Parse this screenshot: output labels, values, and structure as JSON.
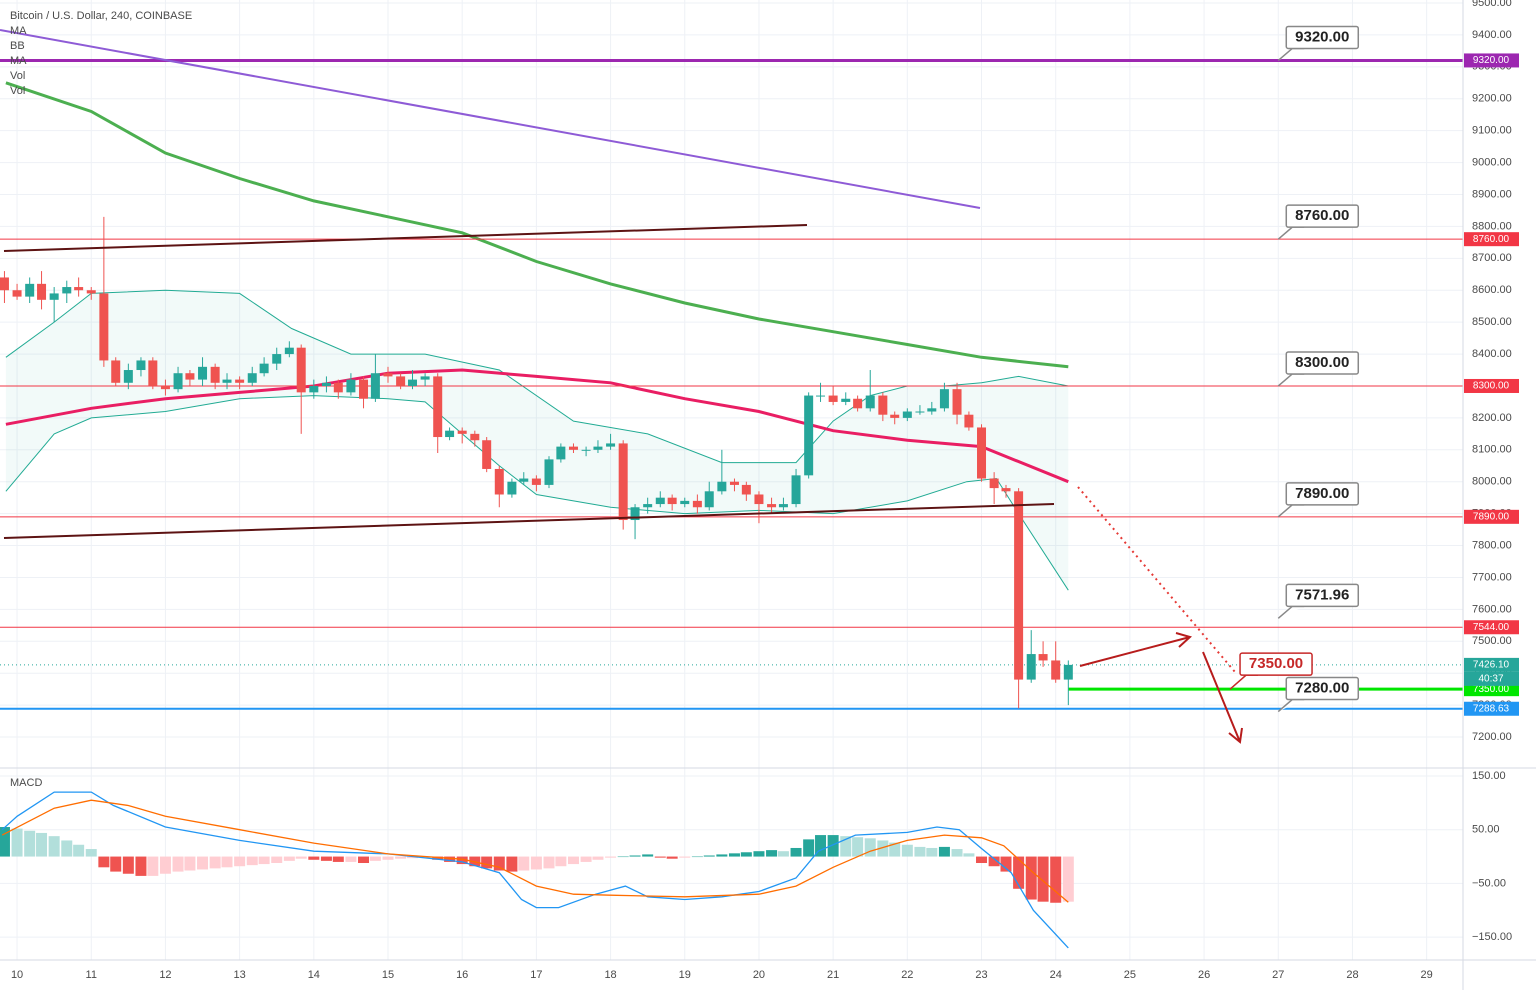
{
  "legend": [
    "Bitcoin / U.S. Dollar, 240, COINBASE",
    "MA",
    "BB",
    "MA",
    "Vol",
    "Vol"
  ],
  "timer": "40:37",
  "chart_data": [
    {
      "type": "candlestick",
      "xlim": [
        9.77,
        29.49
      ],
      "ylim": [
        7103,
        9509.4
      ],
      "grid": true,
      "xticks": [
        10,
        11,
        12,
        13,
        14,
        15,
        16,
        17,
        18,
        19,
        20,
        21,
        22,
        23,
        24,
        25,
        26,
        27,
        28,
        29
      ],
      "yticks": [
        {
          "value": 7200,
          "label": "7200.00"
        },
        {
          "value": 7300,
          "label": "7300.00"
        },
        {
          "value": 7400,
          "label": "7400.00"
        },
        {
          "value": 7500,
          "label": "7500.00"
        },
        {
          "value": 7600,
          "label": "7600.00"
        },
        {
          "value": 7700,
          "label": "7700.00"
        },
        {
          "value": 7800,
          "label": "7800.00"
        },
        {
          "value": 7900,
          "label": "7900.00"
        },
        {
          "value": 8000,
          "label": "8000.00"
        },
        {
          "value": 8100,
          "label": "8100.00"
        },
        {
          "value": 8200,
          "label": "8200.00"
        },
        {
          "value": 8300,
          "label": "8300.00"
        },
        {
          "value": 8400,
          "label": "8400.00"
        },
        {
          "value": 8500,
          "label": "8500.00"
        },
        {
          "value": 8600,
          "label": "8600.00"
        },
        {
          "value": 8700,
          "label": "8700.00"
        },
        {
          "value": 8800,
          "label": "8800.00"
        },
        {
          "value": 8900,
          "label": "8900.00"
        },
        {
          "value": 9000,
          "label": "9000.00"
        },
        {
          "value": 9100,
          "label": "9100.00"
        },
        {
          "value": 9200,
          "label": "9200.00"
        },
        {
          "value": 9300,
          "label": "9300.00"
        },
        {
          "value": 9400,
          "label": "9400.00"
        },
        {
          "value": 9500,
          "label": "9500.00"
        }
      ],
      "up_color": "#26a69a",
      "down_color": "#ef5350",
      "x": [
        9.83,
        10,
        10.17,
        10.33,
        10.5,
        10.67,
        10.83,
        11,
        11.17,
        11.33,
        11.5,
        11.67,
        11.83,
        12,
        12.17,
        12.33,
        12.5,
        12.67,
        12.83,
        13,
        13.17,
        13.33,
        13.5,
        13.67,
        13.83,
        14,
        14.17,
        14.33,
        14.5,
        14.67,
        14.83,
        15,
        15.17,
        15.33,
        15.5,
        15.67,
        15.83,
        16,
        16.17,
        16.33,
        16.5,
        16.67,
        16.83,
        17,
        17.17,
        17.33,
        17.5,
        17.67,
        17.83,
        18,
        18.17,
        18.33,
        18.5,
        18.67,
        18.83,
        19,
        19.17,
        19.33,
        19.5,
        19.67,
        19.83,
        20,
        20.17,
        20.33,
        20.5,
        20.67,
        20.83,
        21,
        21.17,
        21.33,
        21.5,
        21.67,
        21.83,
        22,
        22.17,
        22.33,
        22.5,
        22.67,
        22.83,
        23,
        23.17,
        23.33,
        23.5,
        23.67,
        23.83,
        24,
        24.17
      ],
      "open": [
        8640,
        8600,
        8580,
        8620,
        8570,
        8590,
        8610,
        8600,
        8590,
        8380,
        8310,
        8350,
        8380,
        8300,
        8290,
        8340,
        8320,
        8360,
        8310,
        8320,
        8310,
        8340,
        8370,
        8400,
        8420,
        8280,
        8300,
        8310,
        8280,
        8320,
        8260,
        8340,
        8330,
        8300,
        8320,
        8330,
        8140,
        8160,
        8150,
        8130,
        8040,
        7960,
        8000,
        8010,
        7990,
        8070,
        8110,
        8100,
        8100,
        8110,
        8120,
        7880,
        7920,
        7930,
        7950,
        7930,
        7940,
        7920,
        7970,
        8000,
        7990,
        7960,
        7930,
        7920,
        7930,
        8020,
        8270,
        8270,
        8250,
        8260,
        8230,
        8270,
        8210,
        8200,
        8220,
        8220,
        8230,
        8290,
        8210,
        8170,
        8010,
        7980,
        7970,
        7380,
        7460,
        7440,
        7380
      ],
      "high": [
        8660,
        8620,
        8640,
        8660,
        8610,
        8630,
        8640,
        8610,
        8830,
        8390,
        8370,
        8390,
        8390,
        8320,
        8360,
        8350,
        8390,
        8370,
        8340,
        8330,
        8360,
        8390,
        8420,
        8440,
        8430,
        8320,
        8330,
        8320,
        8340,
        8330,
        8400,
        8360,
        8340,
        8350,
        8340,
        8340,
        8170,
        8170,
        8160,
        8140,
        8050,
        8010,
        8030,
        8020,
        8080,
        8120,
        8120,
        8110,
        8130,
        8150,
        8130,
        7930,
        7950,
        7970,
        7960,
        7950,
        7960,
        8000,
        8100,
        8010,
        8000,
        7970,
        7950,
        7950,
        8040,
        8280,
        8310,
        8300,
        8280,
        8270,
        8350,
        8280,
        8220,
        8230,
        8240,
        8250,
        8310,
        8310,
        8220,
        8180,
        8030,
        7990,
        7980,
        7535,
        7500,
        7500,
        7440
      ],
      "low": [
        8560,
        8570,
        8560,
        8540,
        8500,
        8560,
        8580,
        8570,
        8360,
        8300,
        8290,
        8330,
        8290,
        8270,
        8280,
        8300,
        8300,
        8290,
        8290,
        8290,
        8300,
        8330,
        8350,
        8390,
        8150,
        8260,
        8280,
        8260,
        8270,
        8230,
        8250,
        8310,
        8290,
        8290,
        8300,
        8090,
        8130,
        8120,
        8110,
        8030,
        7920,
        7950,
        7990,
        7970,
        7980,
        8060,
        8090,
        8080,
        8090,
        8100,
        7850,
        7820,
        7900,
        7920,
        7910,
        7920,
        7900,
        7910,
        7960,
        7970,
        7940,
        7870,
        7900,
        7910,
        7920,
        8010,
        8250,
        8240,
        8240,
        8220,
        8220,
        8190,
        8180,
        8190,
        8210,
        8210,
        8220,
        8180,
        8160,
        8000,
        7930,
        7950,
        7290,
        7370,
        7420,
        7370,
        7300
      ],
      "close": [
        8600,
        8580,
        8620,
        8570,
        8590,
        8610,
        8600,
        8590,
        8380,
        8310,
        8350,
        8380,
        8300,
        8290,
        8340,
        8320,
        8360,
        8310,
        8320,
        8310,
        8340,
        8370,
        8400,
        8420,
        8280,
        8300,
        8310,
        8280,
        8320,
        8260,
        8340,
        8330,
        8300,
        8320,
        8330,
        8140,
        8160,
        8150,
        8130,
        8040,
        7960,
        8000,
        8010,
        7990,
        8070,
        8110,
        8100,
        8100,
        8110,
        8120,
        7880,
        7920,
        7930,
        7950,
        7930,
        7940,
        7920,
        7970,
        8000,
        7990,
        7960,
        7930,
        7920,
        7930,
        8020,
        8270,
        8270,
        8250,
        8260,
        8230,
        8270,
        8210,
        8200,
        8220,
        8220,
        8230,
        8290,
        8210,
        8170,
        8010,
        7980,
        7970,
        7380,
        7460,
        7440,
        7380,
        7426.1
      ],
      "bands": {
        "color": "#22ab94",
        "fill": "rgba(34,171,148,0.06)",
        "upper": {
          "x": [
            9.85,
            10.5,
            11,
            12,
            13,
            13.7,
            14.5,
            15.5,
            16.5,
            17.5,
            18.5,
            19.5,
            20.5,
            21,
            21.5,
            22,
            22.5,
            23,
            23.5,
            24.17
          ],
          "values": [
            8390,
            8500,
            8590,
            8600,
            8590,
            8480,
            8400,
            8400,
            8350,
            8190,
            8150,
            8060,
            8060,
            8190,
            8270,
            8300,
            8300,
            8310,
            8330,
            8300
          ]
        },
        "lower": {
          "x": [
            9.85,
            10.5,
            11,
            12,
            13,
            14,
            15,
            15.5,
            16.5,
            17,
            18,
            19,
            20,
            21,
            22,
            22.8,
            23.2,
            23.5,
            24.17
          ],
          "values": [
            7970,
            8150,
            8200,
            8220,
            8260,
            8270,
            8260,
            8250,
            8050,
            7960,
            7920,
            7900,
            7910,
            7900,
            7940,
            8000,
            8010,
            7900,
            7660
          ]
        }
      },
      "series": [
        {
          "color": "#4caf50",
          "width": 3,
          "x": [
            9.85,
            11,
            12,
            13,
            14,
            15,
            16,
            17,
            18,
            19,
            20,
            21,
            22,
            23,
            24.17
          ],
          "values": [
            9250,
            9160,
            9030,
            8950,
            8880,
            8830,
            8780,
            8690,
            8620,
            8560,
            8510,
            8470,
            8430,
            8390,
            8360
          ]
        },
        {
          "color": "#e91e63",
          "width": 3,
          "x": [
            9.85,
            11,
            12,
            13,
            14,
            15,
            16,
            17,
            18,
            19,
            20,
            21,
            22,
            23,
            24.17
          ],
          "values": [
            8180,
            8230,
            8260,
            8280,
            8300,
            8340,
            8350,
            8330,
            8310,
            8260,
            8220,
            8160,
            8130,
            8110,
            8000
          ]
        }
      ],
      "levels": [
        {
          "value": 9320,
          "label": "9320.00",
          "color": "#9c27b0",
          "width": 3
        },
        {
          "value": 8760,
          "label": "8760.00",
          "color": "#f23645",
          "width": 1
        },
        {
          "value": 8300,
          "label": "8300.00",
          "color": "#f23645",
          "width": 1
        },
        {
          "value": 7890,
          "label": "7890.00",
          "color": "#f23645",
          "width": 1
        },
        {
          "value": 7544,
          "label": "7544.00",
          "color": "#f23645",
          "width": 1
        },
        {
          "value": 7350,
          "label": "7350.00",
          "color": "#00e600",
          "width": 3,
          "start": 24.17
        },
        {
          "value": 7288.63,
          "label": "7288.63",
          "color": "#2196f3",
          "width": 2
        },
        {
          "value": 7426.1,
          "label": "7426.10",
          "color": "#26a69a",
          "width": 1,
          "dashed": true
        }
      ],
      "callouts": [
        {
          "x": 27,
          "value": 9320,
          "label": "9320.00"
        },
        {
          "x": 27,
          "value": 8760,
          "label": "8760.00"
        },
        {
          "x": 27,
          "value": 8300,
          "label": "8300.00"
        },
        {
          "x": 27,
          "value": 7890,
          "label": "7890.00"
        },
        {
          "x": 27,
          "value": 7571.96,
          "label": "7571.96"
        },
        {
          "x": 27,
          "value": 7280,
          "label": "7280.00"
        },
        {
          "x": 26.35,
          "value": 7350,
          "label": "7350.00",
          "color": "#c62828"
        }
      ]
    },
    {
      "type": "macd",
      "title": "MACD",
      "xlim": [
        9.77,
        29.49
      ],
      "ylim": [
        -192.6,
        164.9
      ],
      "yticks": [
        {
          "value": 150,
          "label": "150.00"
        },
        {
          "value": 50,
          "label": "50.00"
        },
        {
          "value": -50,
          "label": "−50.00"
        },
        {
          "value": -150,
          "label": "−150.00"
        }
      ],
      "colors": [
        "#26a69a",
        "#b2dfdb",
        "#ffcdd2",
        "#ef5350"
      ],
      "histogram": [
        55,
        52,
        48,
        44,
        38,
        30,
        22,
        14,
        -20,
        -28,
        -32,
        -36,
        -36,
        -32,
        -28,
        -26,
        -24,
        -22,
        -20,
        -18,
        -16,
        -14,
        -12,
        -8,
        -4,
        -6,
        -8,
        -10,
        -10,
        -12,
        -8,
        -6,
        -4,
        -3,
        -2,
        -6,
        -10,
        -14,
        -18,
        -22,
        -26,
        -28,
        -26,
        -24,
        -22,
        -18,
        -14,
        -10,
        -6,
        -2,
        0,
        2,
        4,
        -2,
        -4,
        -2,
        0,
        2,
        4,
        6,
        8,
        10,
        12,
        10,
        16,
        32,
        40,
        40,
        38,
        36,
        34,
        30,
        26,
        22,
        18,
        16,
        18,
        14,
        6,
        -12,
        -18,
        -28,
        -60,
        -80,
        -84,
        -86,
        -84
      ],
      "series": [
        {
          "color": "#2196f3",
          "x": [
            9.8,
            10,
            10.5,
            11,
            11.3,
            12,
            13,
            14,
            15,
            16,
            16.5,
            16.8,
            17,
            17.3,
            17.8,
            18.2,
            18.5,
            19,
            19.5,
            20,
            20.5,
            20.8,
            21.3,
            22,
            22.4,
            22.7,
            23,
            23.4,
            23.7,
            24.17
          ],
          "values": [
            50,
            75,
            120,
            120,
            95,
            55,
            30,
            10,
            5,
            -10,
            -30,
            -80,
            -95,
            -95,
            -70,
            -55,
            -75,
            -80,
            -75,
            -65,
            -40,
            10,
            40,
            45,
            55,
            50,
            15,
            -30,
            -100,
            -170
          ]
        },
        {
          "color": "#ff6d00",
          "x": [
            9.8,
            10.5,
            11,
            11.5,
            12,
            13,
            14,
            15,
            16,
            16.5,
            17,
            17.5,
            18,
            19,
            20,
            20.5,
            21,
            21.5,
            22,
            22.5,
            23,
            23.3,
            23.7,
            24.17
          ],
          "values": [
            40,
            90,
            105,
            95,
            75,
            50,
            25,
            5,
            -5,
            -20,
            -55,
            -70,
            -72,
            -75,
            -70,
            -55,
            -20,
            10,
            30,
            40,
            35,
            20,
            -30,
            -85
          ]
        }
      ]
    }
  ]
}
